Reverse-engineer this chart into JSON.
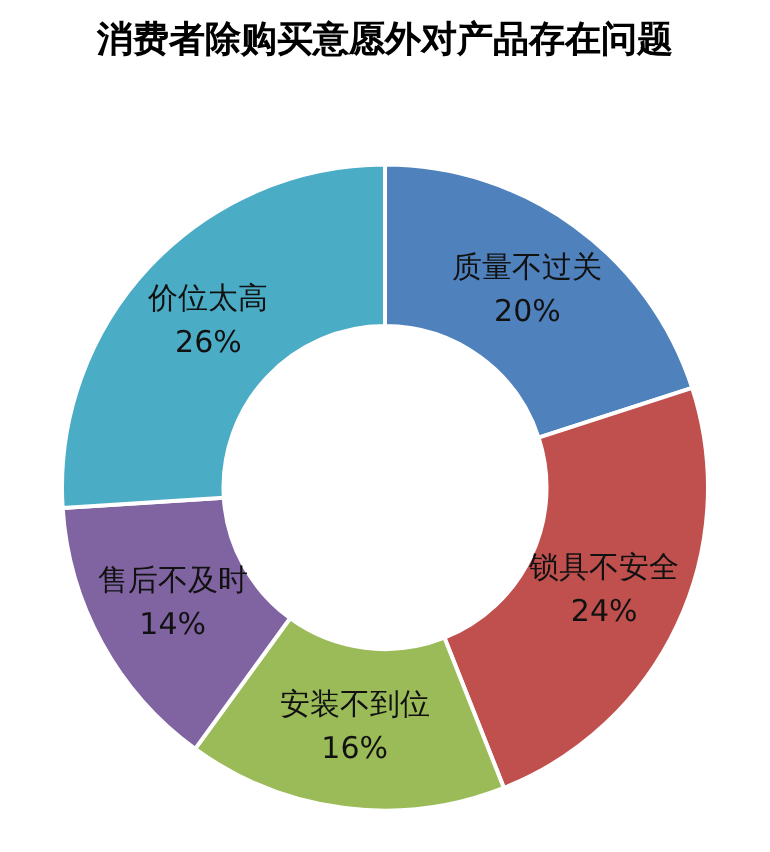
{
  "chart_data": {
    "type": "donut",
    "title": "消费者除购买意愿外对产品存在问题",
    "categories": [
      "质量不过关",
      "锁具不安全",
      "安装不到位",
      "售后不及时",
      "价位太高"
    ],
    "values": [
      20,
      24,
      16,
      14,
      26
    ],
    "colors": [
      "#4f81bd",
      "#c0504d",
      "#9bbb59",
      "#8064a2",
      "#4bacc6"
    ],
    "value_labels": [
      "20%",
      "24%",
      "16%",
      "14%",
      "26%"
    ],
    "legend": false
  }
}
